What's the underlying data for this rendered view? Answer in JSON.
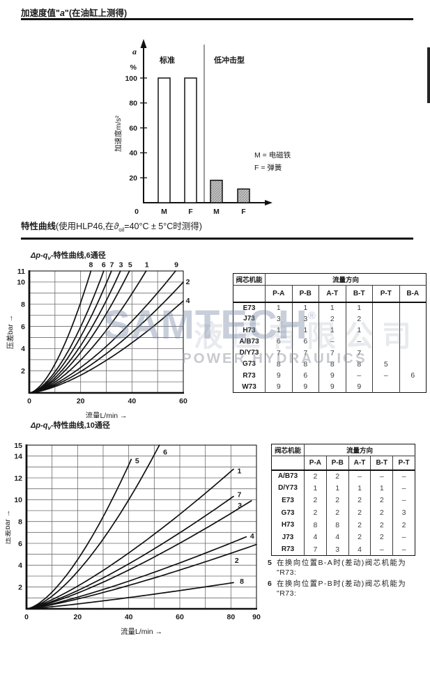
{
  "sections": {
    "acceleration": {
      "heading_pre": "加速度值\"",
      "heading_var": "a",
      "heading_post": "\"(在油缸上测得)"
    },
    "curves": {
      "heading_bold": "特性曲线",
      "heading_pre": "(使用HLP46,在",
      "theta": "ϑ",
      "theta_sub": "oil",
      "heading_post": "=40°C ± 5°C时测得)"
    }
  },
  "chart_data": [
    {
      "id": "acceleration-bar",
      "type": "bar",
      "group_labels": [
        "标准",
        "低冲击型"
      ],
      "unit_top": "a",
      "unit_pct": "%",
      "ylabel": "加速度m/s²",
      "ylim": [
        0,
        112
      ],
      "yticks": [
        100,
        80,
        60,
        40,
        20
      ],
      "zero_label": "0",
      "categories": [
        "M",
        "F",
        "M",
        "F"
      ],
      "values": [
        100,
        100,
        18,
        11
      ],
      "styles": [
        "outline",
        "outline",
        "hatch",
        "hatch"
      ],
      "legend": [
        "M = 电磁铁",
        "F  = 弹簧"
      ]
    },
    {
      "id": "dp-qv-6",
      "type": "line",
      "title_pre": "Δp-q",
      "title_sub": "v",
      "title_post": "-特性曲线,6通径",
      "xlabel": "流量L/min →",
      "ylabel": "压差bar →",
      "xlim": [
        0,
        60
      ],
      "ylim": [
        0,
        11
      ],
      "x_grid": 10,
      "y_grid": 1,
      "xticks": [
        0,
        20,
        40,
        60
      ],
      "yticks": [
        11,
        10,
        8,
        6,
        4,
        2
      ],
      "curves": [
        {
          "label": "8",
          "xe": 24,
          "ye": 11,
          "p": 1.65,
          "lx": 24,
          "ly": 11.35,
          "anchor": "middle"
        },
        {
          "label": "6",
          "xe": 29,
          "ye": 11,
          "p": 1.65,
          "lx": 29,
          "ly": 11.35,
          "anchor": "middle"
        },
        {
          "label": "7",
          "xe": 32,
          "ye": 11,
          "p": 1.65,
          "lx": 32.2,
          "ly": 11.35,
          "anchor": "middle"
        },
        {
          "label": "3",
          "xe": 35.5,
          "ye": 11,
          "p": 1.65,
          "lx": 35.7,
          "ly": 11.35,
          "anchor": "middle"
        },
        {
          "label": "5",
          "xe": 39,
          "ye": 11,
          "p": 1.65,
          "lx": 39.3,
          "ly": 11.35,
          "anchor": "middle"
        },
        {
          "label": "1",
          "xe": 45.5,
          "ye": 11,
          "p": 1.6,
          "lx": 45.8,
          "ly": 11.35,
          "anchor": "middle"
        },
        {
          "label": "9",
          "xe": 57,
          "ye": 11,
          "p": 1.5,
          "lx": 57.3,
          "ly": 11.35,
          "anchor": "middle"
        },
        {
          "label": "2",
          "xe": 60,
          "ye": 10,
          "p": 1.5,
          "lx": 61,
          "ly": 9.8,
          "anchor": "start"
        },
        {
          "label": "4",
          "xe": 60,
          "ye": 8.3,
          "p": 1.5,
          "lx": 61,
          "ly": 8.1,
          "anchor": "start"
        }
      ]
    },
    {
      "id": "dp-qv-10",
      "type": "line",
      "title_pre": "Δp-q",
      "title_sub": "v",
      "title_post": "-特性曲线,10通径",
      "xlabel": "流量L/min →",
      "ylabel": "压差bar →",
      "xlim": [
        0,
        90
      ],
      "ylim": [
        0,
        15
      ],
      "x_grid": 10,
      "y_grid": 1,
      "xticks": [
        0,
        20,
        40,
        60,
        80,
        90
      ],
      "yticks": [
        15,
        14,
        12,
        10,
        8,
        6,
        4,
        2
      ],
      "curves": [
        {
          "label": "5",
          "xe": 41,
          "ye": 13.7,
          "p": 1.55,
          "lx": 42.5,
          "ly": 13.35,
          "anchor": "start"
        },
        {
          "label": "6",
          "xe": 52,
          "ye": 15,
          "p": 1.55,
          "lx": 53.5,
          "ly": 14.15,
          "anchor": "start"
        },
        {
          "label": "1",
          "xe": 81,
          "ye": 12.8,
          "p": 1.3,
          "lx": 82.5,
          "ly": 12.4,
          "anchor": "start"
        },
        {
          "label": "7",
          "xe": 81,
          "ye": 10.3,
          "p": 1.3,
          "lx": 82.5,
          "ly": 10.25,
          "anchor": "start"
        },
        {
          "label": "3",
          "xe": 88,
          "ye": 9.9,
          "p": 1.3,
          "lx": 82.7,
          "ly": 9.25,
          "anchor": "start"
        },
        {
          "label": "4",
          "xe": 86,
          "ye": 6.6,
          "p": 1.25,
          "lx": 87.5,
          "ly": 6.45,
          "anchor": "start"
        },
        {
          "label": "2",
          "xe": 90,
          "ye": 5.9,
          "p": 1.25,
          "lx": 81.5,
          "ly": 4.2,
          "anchor": "start"
        },
        {
          "label": "8",
          "xe": 81,
          "ye": 2.4,
          "p": 1.2,
          "lx": 83.5,
          "ly": 2.3,
          "anchor": "start"
        }
      ]
    }
  ],
  "tables": [
    {
      "corner": "阀芯机能",
      "group_header": "流量方向",
      "columns": [
        "P-A",
        "P-B",
        "A-T",
        "B-T",
        "P-T",
        "B-A"
      ],
      "rows": [
        {
          "label": "E73",
          "values": [
            "1",
            "1",
            "1",
            "1",
            "",
            ""
          ]
        },
        {
          "label": "J73",
          "values": [
            "3",
            "3",
            "2",
            "2",
            "",
            ""
          ]
        },
        {
          "label": "H73",
          "values": [
            "1",
            "1",
            "1",
            "1",
            "",
            ""
          ]
        },
        {
          "label": "A/B73",
          "values": [
            "6",
            "6",
            "–",
            "–",
            "",
            ""
          ]
        },
        {
          "label": "D/Y73",
          "values": [
            "7",
            "7",
            "7",
            "7",
            "",
            ""
          ]
        },
        {
          "label": "G73",
          "values": [
            "8",
            "8",
            "8",
            "8",
            "5",
            ""
          ]
        },
        {
          "label": "R73",
          "values": [
            "9",
            "6",
            "9",
            "–",
            "–",
            "6"
          ]
        },
        {
          "label": "W73",
          "values": [
            "9",
            "9",
            "9",
            "9",
            "",
            ""
          ]
        }
      ]
    },
    {
      "corner": "阀芯机能",
      "group_header": "流量方向",
      "columns": [
        "P-A",
        "P-B",
        "A-T",
        "B-T",
        "P-T"
      ],
      "rows": [
        {
          "label": "A/B73",
          "values": [
            "2",
            "2",
            "–",
            "–",
            "–"
          ]
        },
        {
          "label": "D/Y73",
          "values": [
            "1",
            "1",
            "1",
            "1",
            "–"
          ]
        },
        {
          "label": "E73",
          "values": [
            "2",
            "2",
            "2",
            "2",
            "–"
          ]
        },
        {
          "label": "G73",
          "values": [
            "2",
            "2",
            "2",
            "2",
            "3"
          ]
        },
        {
          "label": "H73",
          "values": [
            "8",
            "8",
            "2",
            "2",
            "2"
          ]
        },
        {
          "label": "J73",
          "values": [
            "4",
            "4",
            "2",
            "2",
            "–"
          ]
        },
        {
          "label": "R73",
          "values": [
            "7",
            "3",
            "4",
            "–",
            "–"
          ]
        }
      ]
    }
  ],
  "footnotes": [
    {
      "num": "5",
      "line1": "在换向位置B-A时(差动)阀芯机能为",
      "line2": "\"R73:"
    },
    {
      "num": "6",
      "line1": "在换向位置P-B时(差动)阀芯机能为",
      "line2": "\"R73:"
    }
  ],
  "watermark": {
    "cjk": "液压有限公司",
    "brand": "SAMTECH",
    "reg": "®",
    "tagline": "POWER HYDRAULICS"
  }
}
